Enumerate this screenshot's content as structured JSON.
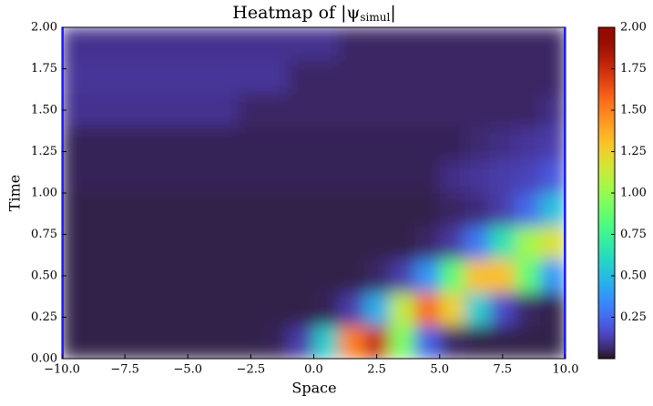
{
  "chart_data": {
    "type": "heatmap",
    "title": "Heatmap of |ψ",
    "title_subscript": "simul",
    "title_end": "|",
    "x_label": "Space",
    "y_label": "Time",
    "x": [
      -9.5,
      -8.5,
      -7.5,
      -6.5,
      -5.5,
      -4.5,
      -3.5,
      -2.5,
      -1.5,
      -0.5,
      0.5,
      1.5,
      2.5,
      3.5,
      4.5,
      5.5,
      6.5,
      7.5,
      8.5,
      9.5
    ],
    "y": [
      0.1,
      0.3,
      0.5,
      0.7,
      0.9,
      1.1,
      1.3,
      1.5,
      1.7,
      1.9
    ],
    "z": [
      [
        0.03,
        0.03,
        0.03,
        0.03,
        0.03,
        0.03,
        0.03,
        0.03,
        0.04,
        0.12,
        0.57,
        1.5,
        1.76,
        0.93,
        0.23,
        0.05,
        0.03,
        0.03,
        0.03,
        0.03
      ],
      [
        0.03,
        0.03,
        0.03,
        0.03,
        0.03,
        0.03,
        0.03,
        0.03,
        0.03,
        0.03,
        0.04,
        0.12,
        0.45,
        1.11,
        1.57,
        1.25,
        0.56,
        0.16,
        0.05,
        0.03
      ],
      [
        0.03,
        0.03,
        0.03,
        0.03,
        0.03,
        0.03,
        0.03,
        0.03,
        0.03,
        0.03,
        0.03,
        0.03,
        0.05,
        0.12,
        0.37,
        0.85,
        1.31,
        1.31,
        0.85,
        0.37
      ],
      [
        0.03,
        0.03,
        0.03,
        0.03,
        0.03,
        0.03,
        0.03,
        0.03,
        0.03,
        0.03,
        0.03,
        0.03,
        0.03,
        0.03,
        0.05,
        0.11,
        0.3,
        0.65,
        1.03,
        1.18
      ],
      [
        0.03,
        0.03,
        0.03,
        0.03,
        0.03,
        0.03,
        0.03,
        0.03,
        0.03,
        0.03,
        0.03,
        0.03,
        0.03,
        0.03,
        0.03,
        0.05,
        0.07,
        0.12,
        0.25,
        0.51
      ],
      [
        0.04,
        0.04,
        0.04,
        0.04,
        0.04,
        0.04,
        0.04,
        0.04,
        0.04,
        0.04,
        0.04,
        0.04,
        0.04,
        0.04,
        0.04,
        0.08,
        0.1,
        0.12,
        0.14,
        0.2
      ],
      [
        0.04,
        0.04,
        0.04,
        0.04,
        0.04,
        0.04,
        0.04,
        0.04,
        0.04,
        0.04,
        0.04,
        0.04,
        0.04,
        0.04,
        0.04,
        0.04,
        0.06,
        0.08,
        0.1,
        0.12
      ],
      [
        0.09,
        0.09,
        0.09,
        0.09,
        0.09,
        0.09,
        0.09,
        0.05,
        0.05,
        0.05,
        0.05,
        0.05,
        0.05,
        0.05,
        0.05,
        0.05,
        0.05,
        0.05,
        0.05,
        0.08
      ],
      [
        0.1,
        0.1,
        0.1,
        0.1,
        0.1,
        0.1,
        0.1,
        0.1,
        0.1,
        0.05,
        0.05,
        0.05,
        0.05,
        0.05,
        0.05,
        0.05,
        0.05,
        0.05,
        0.05,
        0.05
      ],
      [
        0.09,
        0.09,
        0.09,
        0.09,
        0.09,
        0.09,
        0.09,
        0.09,
        0.09,
        0.09,
        0.09,
        0.05,
        0.05,
        0.05,
        0.05,
        0.05,
        0.05,
        0.05,
        0.05,
        0.05
      ]
    ],
    "colormap": "turbo",
    "xlim": [
      -10,
      10
    ],
    "xticks": [
      {
        "value": -10,
        "label": "−10.0"
      },
      {
        "value": -7.5,
        "label": "−7.5"
      },
      {
        "value": -5,
        "label": "−5.0"
      },
      {
        "value": -2.5,
        "label": "−2.5"
      },
      {
        "value": 0,
        "label": "0.0"
      },
      {
        "value": 2.5,
        "label": "2.5"
      },
      {
        "value": 5,
        "label": "5.0"
      },
      {
        "value": 7.5,
        "label": "7.5"
      },
      {
        "value": 10,
        "label": "10.0"
      }
    ],
    "ylim": [
      0,
      2
    ],
    "yticks": [
      {
        "value": 0,
        "label": "0.00"
      },
      {
        "value": 0.25,
        "label": "0.25"
      },
      {
        "value": 0.5,
        "label": "0.50"
      },
      {
        "value": 0.75,
        "label": "0.75"
      },
      {
        "value": 1,
        "label": "1.00"
      },
      {
        "value": 1.25,
        "label": "1.25"
      },
      {
        "value": 1.5,
        "label": "1.50"
      },
      {
        "value": 1.75,
        "label": "1.75"
      },
      {
        "value": 2,
        "label": "2.00"
      }
    ],
    "clim": [
      0,
      2
    ],
    "cticks": [
      {
        "value": 0.25,
        "label": "0.25"
      },
      {
        "value": 0.5,
        "label": "0.50"
      },
      {
        "value": 0.75,
        "label": "0.75"
      },
      {
        "value": 1,
        "label": "1.00"
      },
      {
        "value": 1.25,
        "label": "1.25"
      },
      {
        "value": 1.5,
        "label": "1.50"
      },
      {
        "value": 1.75,
        "label": "1.75"
      },
      {
        "value": 2,
        "label": "2.00"
      }
    ]
  }
}
